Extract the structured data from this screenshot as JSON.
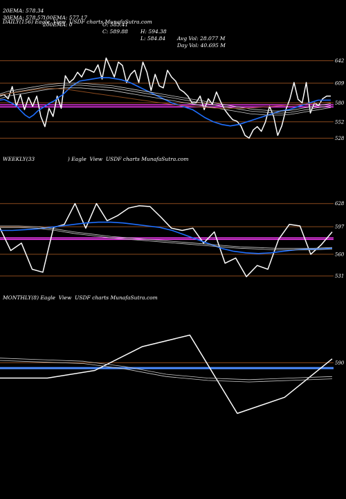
{
  "header": {
    "row1": [
      "20EMA: 578.34",
      "100EMA: 577.17",
      "O: 583.41",
      "H: 594.38",
      "Avg Vol: 28.077 M"
    ],
    "row2": [
      "30EMA: 578.57",
      "200EMA: 0",
      "C: 589.88",
      "L: 584.84",
      "Day Vol: 40.695 M"
    ]
  },
  "colors": {
    "background": "#000000",
    "price": "#ffffff",
    "ema_blue": "#1e6fff",
    "level_line": "#8b4a1e",
    "magenta": "#ff3cff",
    "ma_line": "#cccccc",
    "monthly_band": "#4d8cff"
  },
  "chart_data": [
    {
      "type": "line",
      "label": "DAILY(156) Eagle  View  USDF charts MunafaSutra.com",
      "ylim": [
        512,
        660
      ],
      "y_ticks": [
        642,
        609,
        580,
        552,
        528
      ],
      "levels": [
        642,
        609,
        580,
        552,
        528
      ],
      "magenta_levels": [
        577,
        574
      ],
      "series": [
        {
          "role": "price",
          "values": [
            590,
            592,
            586,
            604,
            575,
            592,
            570,
            588,
            575,
            590,
            560,
            545,
            572,
            560,
            590,
            572,
            620,
            610,
            615,
            625,
            618,
            630,
            628,
            625,
            636,
            615,
            646,
            632,
            618,
            640,
            635,
            610,
            622,
            628,
            610,
            640,
            625,
            598,
            622,
            605,
            602,
            628,
            618,
            612,
            600,
            596,
            590,
            580,
            580,
            590,
            570,
            586,
            578,
            596,
            582,
            570,
            562,
            555,
            553,
            546,
            532,
            528,
            540,
            545,
            538,
            552,
            575,
            560,
            532,
            546,
            570,
            586,
            610,
            585,
            580,
            610,
            565,
            580,
            576,
            586,
            590,
            590
          ]
        },
        {
          "role": "ema",
          "values": [
            584,
            585,
            582,
            579,
            575,
            568,
            562,
            558,
            562,
            568,
            572,
            576,
            580,
            583,
            588,
            592,
            598,
            604,
            608,
            612,
            613,
            614,
            615,
            616,
            617,
            617,
            617,
            616,
            615,
            614,
            612,
            610,
            607,
            604,
            601,
            598,
            595,
            592,
            589,
            586,
            583,
            580,
            578,
            576,
            574,
            572,
            570,
            566,
            562,
            558,
            555,
            552,
            550,
            548,
            547,
            546,
            547,
            548,
            550,
            552,
            554,
            556,
            558,
            560,
            562,
            564,
            566,
            568,
            569,
            570,
            572,
            574,
            576,
            578,
            580,
            582,
            584,
            584,
            584,
            584
          ]
        },
        {
          "role": "ma1",
          "values": [
            590,
            594,
            596,
            598,
            600,
            602,
            604,
            605,
            606,
            606,
            606,
            605,
            604,
            603,
            602,
            600,
            598,
            596,
            594,
            592,
            590,
            588,
            586,
            584,
            582,
            580,
            578,
            576,
            574,
            572,
            570,
            568,
            567,
            566,
            565,
            565,
            566,
            568,
            570,
            572,
            574,
            576
          ]
        },
        {
          "role": "ma2",
          "values": [
            593,
            597,
            599,
            601,
            603,
            605,
            607,
            608,
            609,
            609,
            609,
            608,
            607,
            606,
            605,
            603,
            601,
            599,
            597,
            595,
            593,
            591,
            589,
            587,
            585,
            583,
            581,
            579,
            577,
            575,
            573,
            571,
            570,
            569,
            568,
            568,
            569,
            571,
            573,
            575,
            577,
            579
          ]
        },
        {
          "role": "ma3",
          "values": [
            586,
            590,
            592,
            594,
            596,
            598,
            600,
            601,
            602,
            602,
            602,
            601,
            600,
            599,
            598,
            596,
            594,
            592,
            590,
            588,
            586,
            584,
            582,
            580,
            578,
            576,
            574,
            572,
            570,
            568,
            566,
            564,
            563,
            562,
            562,
            562,
            563,
            565,
            567,
            569,
            571,
            573
          ]
        },
        {
          "role": "ma_brown",
          "values": [
            592,
            594,
            596,
            598,
            600,
            601,
            601,
            600,
            598,
            596,
            594,
            592,
            590,
            588,
            586,
            584,
            582,
            580,
            578,
            576,
            575,
            574,
            573,
            572,
            572,
            572,
            572,
            573,
            574,
            575,
            576,
            577,
            578,
            579,
            580,
            581
          ]
        }
      ]
    },
    {
      "type": "line",
      "label": "WEEKLY(33                    ) Eagle  View  USDF charts MunafaSutra.com",
      "ylim": [
        520,
        650
      ],
      "y_ticks": [
        628,
        597,
        560,
        531
      ],
      "levels": [
        628,
        597,
        560,
        531
      ],
      "magenta_levels": [
        582,
        580
      ],
      "series": [
        {
          "role": "price",
          "values": [
            595,
            565,
            575,
            540,
            536,
            596,
            600,
            628,
            595,
            628,
            605,
            612,
            622,
            625,
            624,
            610,
            595,
            592,
            595,
            575,
            590,
            548,
            555,
            530,
            545,
            540,
            580,
            600,
            598,
            560,
            573,
            590
          ]
        },
        {
          "role": "ema",
          "values": [
            592,
            592,
            593,
            594,
            596,
            598,
            600,
            602,
            603,
            603,
            602,
            600,
            598,
            596,
            592,
            586,
            580,
            574,
            568,
            564,
            562,
            561,
            562,
            564,
            566,
            567,
            567,
            568
          ]
        },
        {
          "role": "ma1",
          "values": [
            596,
            596,
            595,
            592,
            588,
            585,
            582,
            580,
            578,
            576,
            574,
            572,
            570,
            568,
            567,
            566,
            566,
            566,
            567
          ]
        },
        {
          "role": "ma2",
          "values": [
            598,
            598,
            597,
            594,
            590,
            587,
            584,
            582,
            580,
            578,
            576,
            574,
            572,
            570,
            569,
            568,
            568,
            568,
            569
          ]
        }
      ]
    },
    {
      "type": "line",
      "label": "MONTHLY(8) Eagle  View  USDF charts MunafaSutra.com",
      "ylim": [
        510,
        640
      ],
      "y_ticks": [
        590
      ],
      "levels": [
        590
      ],
      "band_level": 583,
      "series": [
        {
          "role": "price",
          "values": [
            570,
            570,
            580,
            611,
            626,
            524,
            545,
            595
          ]
        },
        {
          "role": "ma1",
          "values": [
            596,
            594,
            592,
            585,
            575,
            570,
            568,
            570,
            572
          ]
        },
        {
          "role": "ma2",
          "values": [
            593,
            591,
            589,
            582,
            572,
            567,
            565,
            567,
            569
          ]
        }
      ]
    }
  ]
}
